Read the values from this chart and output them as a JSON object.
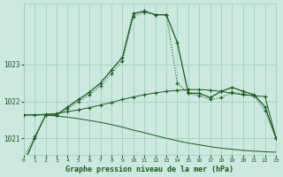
{
  "title": "Graphe pression niveau de la mer (hPa)",
  "bg_color": "#cce8e0",
  "grid_color": "#99ccbb",
  "line_color": "#1a5c1a",
  "xlim": [
    0,
    23
  ],
  "ylim": [
    1020.55,
    1024.65
  ],
  "yticks": [
    1021,
    1022,
    1023
  ],
  "xticks": [
    0,
    1,
    2,
    3,
    4,
    5,
    6,
    7,
    8,
    9,
    10,
    11,
    12,
    13,
    14,
    15,
    16,
    17,
    18,
    19,
    20,
    21,
    22,
    23
  ],
  "line_flat_declining": {
    "x": [
      0,
      1,
      2,
      3,
      4,
      5,
      6,
      7,
      8,
      9,
      10,
      11,
      12,
      13,
      14,
      15,
      16,
      17,
      18,
      19,
      20,
      21,
      22,
      23
    ],
    "y": [
      1021.63,
      1021.63,
      1021.63,
      1021.6,
      1021.57,
      1021.53,
      1021.48,
      1021.43,
      1021.37,
      1021.3,
      1021.22,
      1021.15,
      1021.07,
      1021.0,
      1020.93,
      1020.87,
      1020.82,
      1020.77,
      1020.73,
      1020.7,
      1020.67,
      1020.65,
      1020.63,
      1020.62
    ]
  },
  "line_flat_rising": {
    "x": [
      0,
      1,
      2,
      3,
      4,
      5,
      6,
      7,
      8,
      9,
      10,
      11,
      12,
      13,
      14,
      15,
      16,
      17,
      18,
      19,
      20,
      21,
      22,
      23
    ],
    "y": [
      1021.63,
      1021.63,
      1021.65,
      1021.67,
      1021.72,
      1021.77,
      1021.83,
      1021.9,
      1021.97,
      1022.05,
      1022.12,
      1022.18,
      1022.23,
      1022.27,
      1022.3,
      1022.32,
      1022.32,
      1022.3,
      1022.27,
      1022.22,
      1022.18,
      1022.15,
      1022.13,
      1021.0
    ]
  },
  "line_peaked_main": {
    "x": [
      0,
      1,
      2,
      3,
      4,
      5,
      6,
      7,
      8,
      9,
      10,
      11,
      12,
      13,
      14,
      15,
      16,
      17,
      18,
      19,
      20,
      21,
      22,
      23
    ],
    "y": [
      1020.3,
      1021.0,
      1021.63,
      1021.63,
      1021.85,
      1022.05,
      1022.25,
      1022.5,
      1022.85,
      1023.2,
      1024.38,
      1024.45,
      1024.35,
      1024.35,
      1023.6,
      1022.22,
      1022.22,
      1022.1,
      1022.27,
      1022.38,
      1022.27,
      1022.18,
      1021.85,
      1021.0
    ]
  },
  "line_peaked_secondary": {
    "x": [
      0,
      1,
      2,
      3,
      4,
      5,
      6,
      7,
      8,
      9,
      10,
      11,
      12,
      13,
      14,
      15,
      16,
      17,
      18,
      19,
      20,
      21,
      22,
      23
    ],
    "y": [
      1020.45,
      1021.05,
      1021.63,
      1021.63,
      1021.8,
      1022.0,
      1022.18,
      1022.42,
      1022.75,
      1023.1,
      1024.3,
      1024.42,
      1024.35,
      1024.35,
      1022.5,
      1022.22,
      1022.15,
      1022.05,
      1022.1,
      1022.25,
      1022.2,
      1022.15,
      1021.75,
      1021.0
    ]
  }
}
